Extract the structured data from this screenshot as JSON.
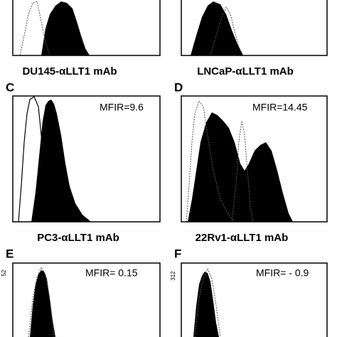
{
  "panels": [
    {
      "caption": "DU145-αLLT1 mAb"
    },
    {
      "caption": "LNCaP-αLLT1 mAb"
    },
    {
      "letter": "C",
      "mfir": "MFIR=9.6",
      "caption": "PC3-αLLT1 mAb"
    },
    {
      "letter": "D",
      "mfir": "MFIR=14.45",
      "caption": "22Rv1-αLLT1 mAb"
    },
    {
      "letter": "E",
      "mfir": "MFIR= 0.15",
      "axis_max": "52"
    },
    {
      "letter": "F",
      "mfir": "MFIR= - 0.9",
      "axis_max": "312"
    }
  ]
}
